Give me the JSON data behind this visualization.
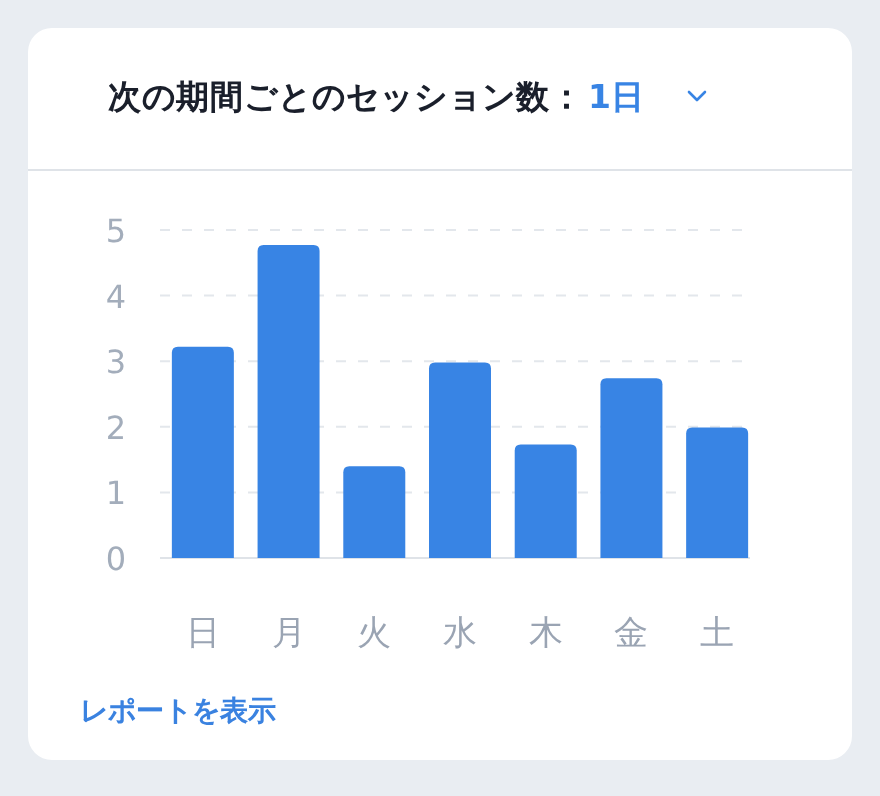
{
  "chart_data": {
    "type": "bar",
    "title": "次の期間ごとのセッション数：",
    "categories": [
      "日",
      "月",
      "火",
      "水",
      "木",
      "金",
      "土"
    ],
    "values": [
      3.22,
      4.77,
      1.4,
      2.98,
      1.73,
      2.74,
      1.99
    ],
    "color": "#3884e4",
    "ylim": [
      0,
      5
    ],
    "yticks": [
      0,
      1,
      2,
      3,
      4,
      5
    ],
    "grid": "y",
    "annotations": [
      "1日",
      "レポートを表示"
    ]
  }
}
